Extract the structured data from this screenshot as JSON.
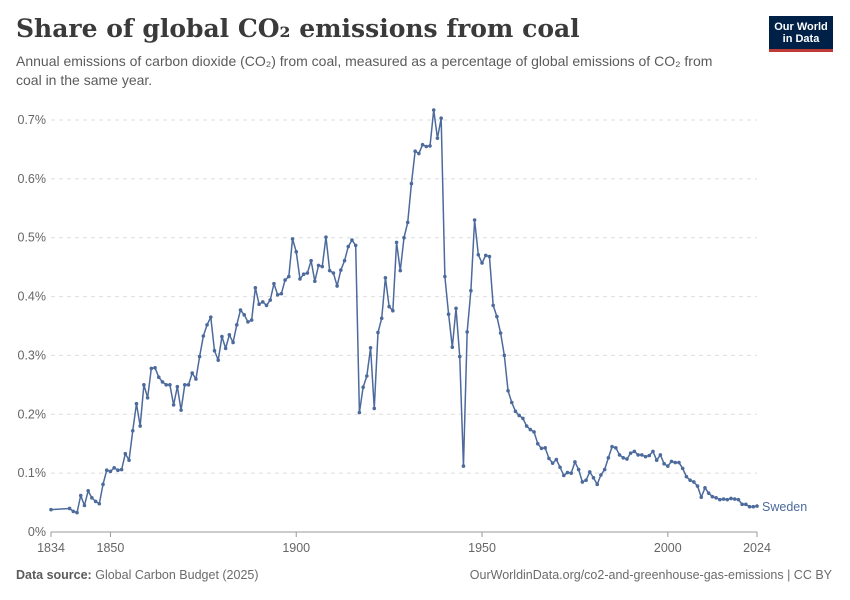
{
  "header": {
    "title": "Share of global CO₂ emissions from coal",
    "subtitle": "Annual emissions of carbon dioxide (CO₂) from coal, measured as a percentage of global emissions of CO₂ from coal in the same year."
  },
  "logo": {
    "line1": "Our World",
    "line2": "in Data",
    "bg_color": "#002147",
    "accent_color": "#be3b35"
  },
  "footer": {
    "source_label": "Data source:",
    "source_value": "Global Carbon Budget (2025)",
    "url": "OurWorldinData.org/co2-and-greenhouse-gas-emissions | CC BY"
  },
  "chart_data": {
    "type": "line",
    "xlim": [
      1834,
      2024
    ],
    "ylim": [
      0,
      0.7
    ],
    "x_ticks": [
      1834,
      1850,
      1900,
      1950,
      2000,
      2024
    ],
    "y_ticks": [
      {
        "value": 0,
        "label": "0%"
      },
      {
        "value": 0.1,
        "label": "0.1%"
      },
      {
        "value": 0.2,
        "label": "0.2%"
      },
      {
        "value": 0.3,
        "label": "0.3%"
      },
      {
        "value": 0.4,
        "label": "0.4%"
      },
      {
        "value": 0.5,
        "label": "0.5%"
      },
      {
        "value": 0.6,
        "label": "0.6%"
      },
      {
        "value": 0.7,
        "label": "0.7%"
      }
    ],
    "grid": "horizontal-dashed",
    "series": [
      {
        "name": "Sweden",
        "color": "#4c6a9c",
        "points": [
          [
            1834,
            0.038
          ],
          [
            1839,
            0.04
          ],
          [
            1840,
            0.035
          ],
          [
            1841,
            0.033
          ],
          [
            1842,
            0.062
          ],
          [
            1843,
            0.045
          ],
          [
            1844,
            0.07
          ],
          [
            1845,
            0.058
          ],
          [
            1846,
            0.052
          ],
          [
            1847,
            0.048
          ],
          [
            1848,
            0.081
          ],
          [
            1849,
            0.105
          ],
          [
            1850,
            0.103
          ],
          [
            1851,
            0.109
          ],
          [
            1852,
            0.105
          ],
          [
            1853,
            0.106
          ],
          [
            1854,
            0.133
          ],
          [
            1855,
            0.122
          ],
          [
            1856,
            0.172
          ],
          [
            1857,
            0.218
          ],
          [
            1858,
            0.18
          ],
          [
            1859,
            0.25
          ],
          [
            1860,
            0.228
          ],
          [
            1861,
            0.278
          ],
          [
            1862,
            0.279
          ],
          [
            1863,
            0.263
          ],
          [
            1864,
            0.255
          ],
          [
            1865,
            0.25
          ],
          [
            1866,
            0.25
          ],
          [
            1867,
            0.216
          ],
          [
            1868,
            0.247
          ],
          [
            1869,
            0.207
          ],
          [
            1870,
            0.25
          ],
          [
            1871,
            0.25
          ],
          [
            1872,
            0.27
          ],
          [
            1873,
            0.26
          ],
          [
            1874,
            0.298
          ],
          [
            1875,
            0.333
          ],
          [
            1876,
            0.352
          ],
          [
            1877,
            0.365
          ],
          [
            1878,
            0.308
          ],
          [
            1879,
            0.292
          ],
          [
            1880,
            0.332
          ],
          [
            1881,
            0.312
          ],
          [
            1882,
            0.335
          ],
          [
            1883,
            0.322
          ],
          [
            1884,
            0.352
          ],
          [
            1885,
            0.377
          ],
          [
            1886,
            0.369
          ],
          [
            1887,
            0.357
          ],
          [
            1888,
            0.36
          ],
          [
            1889,
            0.415
          ],
          [
            1890,
            0.387
          ],
          [
            1891,
            0.391
          ],
          [
            1892,
            0.385
          ],
          [
            1893,
            0.394
          ],
          [
            1894,
            0.422
          ],
          [
            1895,
            0.403
          ],
          [
            1896,
            0.405
          ],
          [
            1897,
            0.428
          ],
          [
            1898,
            0.434
          ],
          [
            1899,
            0.498
          ],
          [
            1900,
            0.476
          ],
          [
            1901,
            0.43
          ],
          [
            1902,
            0.438
          ],
          [
            1903,
            0.44
          ],
          [
            1904,
            0.461
          ],
          [
            1905,
            0.426
          ],
          [
            1906,
            0.453
          ],
          [
            1907,
            0.451
          ],
          [
            1908,
            0.501
          ],
          [
            1909,
            0.444
          ],
          [
            1910,
            0.44
          ],
          [
            1911,
            0.418
          ],
          [
            1912,
            0.445
          ],
          [
            1913,
            0.461
          ],
          [
            1914,
            0.485
          ],
          [
            1915,
            0.496
          ],
          [
            1916,
            0.487
          ],
          [
            1917,
            0.203
          ],
          [
            1918,
            0.246
          ],
          [
            1919,
            0.265
          ],
          [
            1920,
            0.313
          ],
          [
            1921,
            0.21
          ],
          [
            1922,
            0.339
          ],
          [
            1923,
            0.363
          ],
          [
            1924,
            0.432
          ],
          [
            1925,
            0.383
          ],
          [
            1926,
            0.376
          ],
          [
            1927,
            0.492
          ],
          [
            1928,
            0.444
          ],
          [
            1929,
            0.5
          ],
          [
            1930,
            0.526
          ],
          [
            1931,
            0.592
          ],
          [
            1932,
            0.647
          ],
          [
            1933,
            0.643
          ],
          [
            1934,
            0.658
          ],
          [
            1935,
            0.655
          ],
          [
            1936,
            0.656
          ],
          [
            1937,
            0.717
          ],
          [
            1938,
            0.669
          ],
          [
            1939,
            0.703
          ],
          [
            1940,
            0.434
          ],
          [
            1941,
            0.37
          ],
          [
            1942,
            0.314
          ],
          [
            1943,
            0.38
          ],
          [
            1944,
            0.298
          ],
          [
            1945,
            0.112
          ],
          [
            1946,
            0.34
          ],
          [
            1947,
            0.41
          ],
          [
            1948,
            0.53
          ],
          [
            1949,
            0.471
          ],
          [
            1950,
            0.457
          ],
          [
            1951,
            0.47
          ],
          [
            1952,
            0.468
          ],
          [
            1953,
            0.385
          ],
          [
            1954,
            0.366
          ],
          [
            1955,
            0.338
          ],
          [
            1956,
            0.3
          ],
          [
            1957,
            0.24
          ],
          [
            1958,
            0.22
          ],
          [
            1959,
            0.205
          ],
          [
            1960,
            0.198
          ],
          [
            1961,
            0.193
          ],
          [
            1962,
            0.18
          ],
          [
            1963,
            0.174
          ],
          [
            1964,
            0.17
          ],
          [
            1965,
            0.15
          ],
          [
            1966,
            0.142
          ],
          [
            1967,
            0.143
          ],
          [
            1968,
            0.125
          ],
          [
            1969,
            0.117
          ],
          [
            1970,
            0.123
          ],
          [
            1971,
            0.11
          ],
          [
            1972,
            0.096
          ],
          [
            1973,
            0.101
          ],
          [
            1974,
            0.1
          ],
          [
            1975,
            0.119
          ],
          [
            1976,
            0.106
          ],
          [
            1977,
            0.085
          ],
          [
            1978,
            0.088
          ],
          [
            1979,
            0.102
          ],
          [
            1980,
            0.092
          ],
          [
            1981,
            0.081
          ],
          [
            1982,
            0.097
          ],
          [
            1983,
            0.106
          ],
          [
            1984,
            0.126
          ],
          [
            1985,
            0.145
          ],
          [
            1986,
            0.143
          ],
          [
            1987,
            0.131
          ],
          [
            1988,
            0.126
          ],
          [
            1989,
            0.124
          ],
          [
            1990,
            0.134
          ],
          [
            1991,
            0.137
          ],
          [
            1992,
            0.131
          ],
          [
            1993,
            0.131
          ],
          [
            1994,
            0.128
          ],
          [
            1995,
            0.13
          ],
          [
            1996,
            0.137
          ],
          [
            1997,
            0.122
          ],
          [
            1998,
            0.131
          ],
          [
            1999,
            0.116
          ],
          [
            2000,
            0.112
          ],
          [
            2001,
            0.12
          ],
          [
            2002,
            0.118
          ],
          [
            2003,
            0.118
          ],
          [
            2004,
            0.108
          ],
          [
            2005,
            0.094
          ],
          [
            2006,
            0.088
          ],
          [
            2007,
            0.085
          ],
          [
            2008,
            0.078
          ],
          [
            2009,
            0.059
          ],
          [
            2010,
            0.075
          ],
          [
            2011,
            0.066
          ],
          [
            2012,
            0.06
          ],
          [
            2013,
            0.058
          ],
          [
            2014,
            0.055
          ],
          [
            2015,
            0.056
          ],
          [
            2016,
            0.055
          ],
          [
            2017,
            0.057
          ],
          [
            2018,
            0.056
          ],
          [
            2019,
            0.055
          ],
          [
            2020,
            0.047
          ],
          [
            2021,
            0.047
          ],
          [
            2022,
            0.043
          ],
          [
            2023,
            0.043
          ],
          [
            2024,
            0.044
          ]
        ]
      }
    ]
  }
}
